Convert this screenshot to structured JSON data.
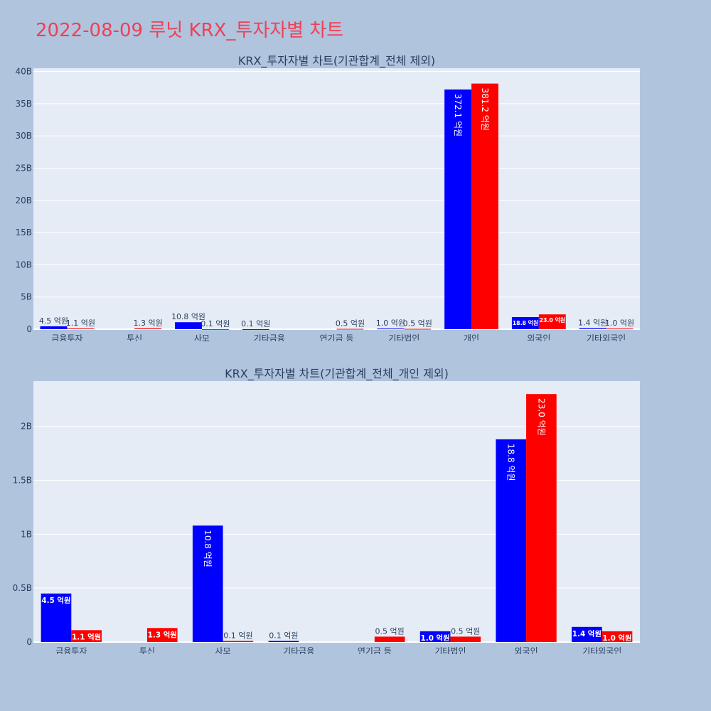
{
  "page": {
    "title": "2022-08-09 루닛 KRX_투자자별 차트"
  },
  "colors": {
    "buy": "#0000ff",
    "sell": "#ff0000",
    "plot_bg": "#e5ecf6",
    "page_bg": "#b0c4de",
    "title": "#ef4056"
  },
  "chart_data": [
    {
      "type": "bar",
      "title": "KRX_투자자별 차트(기관합계_전체 제외)",
      "categories": [
        "금융투자",
        "투신",
        "사모",
        "기타금융",
        "연기금 등",
        "기타법인",
        "개인",
        "외국인",
        "기타외국인"
      ],
      "series": [
        {
          "color": "#0000ff",
          "values": [
            0.45,
            0,
            1.08,
            0.01,
            0,
            0.1,
            37.21,
            1.88,
            0.14
          ],
          "labels": [
            "4.5 억원",
            "",
            "10.8 억원",
            "0.1 억원",
            "",
            "1.0 억원",
            "372.1 억원",
            "18.8 억원",
            "1.4 억원"
          ]
        },
        {
          "color": "#ff0000",
          "values": [
            0.11,
            0.13,
            0.01,
            0,
            0.05,
            0.05,
            38.12,
            2.3,
            0.1
          ],
          "labels": [
            "1.1 억원",
            "1.3 억원",
            "0.1 억원",
            "",
            "0.5 억원",
            "0.5 억원",
            "381.2 억원",
            "23.0 억원",
            "1.0 억원"
          ]
        }
      ],
      "ylim": [
        0,
        40.5
      ],
      "yticks": [
        0,
        5,
        10,
        15,
        20,
        25,
        30,
        35,
        40
      ],
      "ytick_labels": [
        "0",
        "5B",
        "10B",
        "15B",
        "20B",
        "25B",
        "30B",
        "35B",
        "40B"
      ],
      "grid": true
    },
    {
      "type": "bar",
      "title": "KRX_투자자별 차트(기관합계_전체_개인 제외)",
      "categories": [
        "금융투자",
        "투신",
        "사모",
        "기타금융",
        "연기금 등",
        "기타법인",
        "외국인",
        "기타외국인"
      ],
      "series": [
        {
          "color": "#0000ff",
          "values": [
            0.45,
            0,
            1.08,
            0.01,
            0,
            0.1,
            1.88,
            0.14
          ],
          "labels": [
            "4.5 억원",
            "",
            "10.8 억원",
            "0.1 억원",
            "",
            "1.0 억원",
            "18.8 억원",
            "1.4 억원"
          ]
        },
        {
          "color": "#ff0000",
          "values": [
            0.11,
            0.13,
            0.01,
            0,
            0.05,
            0.05,
            2.3,
            0.1
          ],
          "labels": [
            "1.1 억원",
            "1.3 억원",
            "0.1 억원",
            "",
            "0.5 억원",
            "0.5 억원",
            "23.0 억원",
            "1.0 억원"
          ]
        }
      ],
      "ylim": [
        0,
        2.42
      ],
      "yticks": [
        0,
        0.5,
        1,
        1.5,
        2
      ],
      "ytick_labels": [
        "0",
        "0.5B",
        "1B",
        "1.5B",
        "2B"
      ],
      "grid": true
    }
  ]
}
